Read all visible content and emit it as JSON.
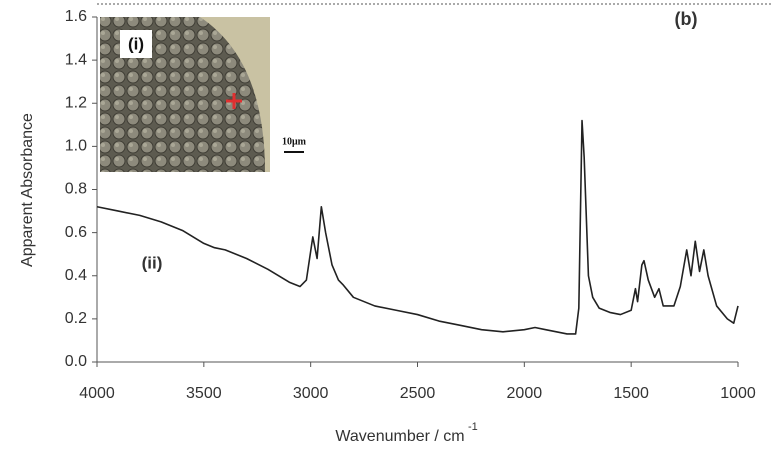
{
  "chart_data": {
    "type": "line",
    "x_label": "Wavenumber / cm",
    "x_label_superscript": "-1",
    "y_label": "Apparent Absorbance",
    "annotations": [
      "(b)",
      "(i)",
      "(ii)",
      "10μm"
    ],
    "color": "#222222",
    "xlim": [
      4000,
      1000
    ],
    "xticks": [
      4000,
      3500,
      3000,
      2500,
      2000,
      1500,
      1000
    ],
    "ylim": [
      0,
      1.6
    ],
    "yticks": [
      {
        "value": 0,
        "label": "0.0"
      },
      0.2,
      0.4,
      0.6,
      0.8,
      {
        "value": 1,
        "label": "1.0"
      },
      1.2,
      1.4,
      1.6
    ],
    "x": [
      4000,
      3900,
      3800,
      3700,
      3600,
      3500,
      3450,
      3400,
      3300,
      3200,
      3100,
      3050,
      3020,
      2990,
      2970,
      2950,
      2930,
      2900,
      2870,
      2850,
      2800,
      2700,
      2600,
      2500,
      2400,
      2300,
      2200,
      2100,
      2000,
      1950,
      1900,
      1800,
      1760,
      1745,
      1730,
      1720,
      1700,
      1680,
      1650,
      1600,
      1550,
      1500,
      1480,
      1470,
      1450,
      1440,
      1420,
      1390,
      1370,
      1350,
      1300,
      1270,
      1240,
      1220,
      1200,
      1180,
      1160,
      1140,
      1100,
      1050,
      1020,
      1000
    ],
    "values": [
      0.72,
      0.7,
      0.68,
      0.65,
      0.61,
      0.55,
      0.53,
      0.52,
      0.48,
      0.43,
      0.37,
      0.35,
      0.38,
      0.58,
      0.48,
      0.72,
      0.6,
      0.45,
      0.38,
      0.36,
      0.3,
      0.26,
      0.24,
      0.22,
      0.19,
      0.17,
      0.15,
      0.14,
      0.15,
      0.16,
      0.15,
      0.13,
      0.13,
      0.25,
      1.12,
      0.95,
      0.4,
      0.3,
      0.25,
      0.23,
      0.22,
      0.24,
      0.34,
      0.28,
      0.45,
      0.47,
      0.38,
      0.3,
      0.34,
      0.26,
      0.26,
      0.35,
      0.52,
      0.4,
      0.56,
      0.42,
      0.52,
      0.4,
      0.26,
      0.2,
      0.18,
      0.26
    ]
  }
}
